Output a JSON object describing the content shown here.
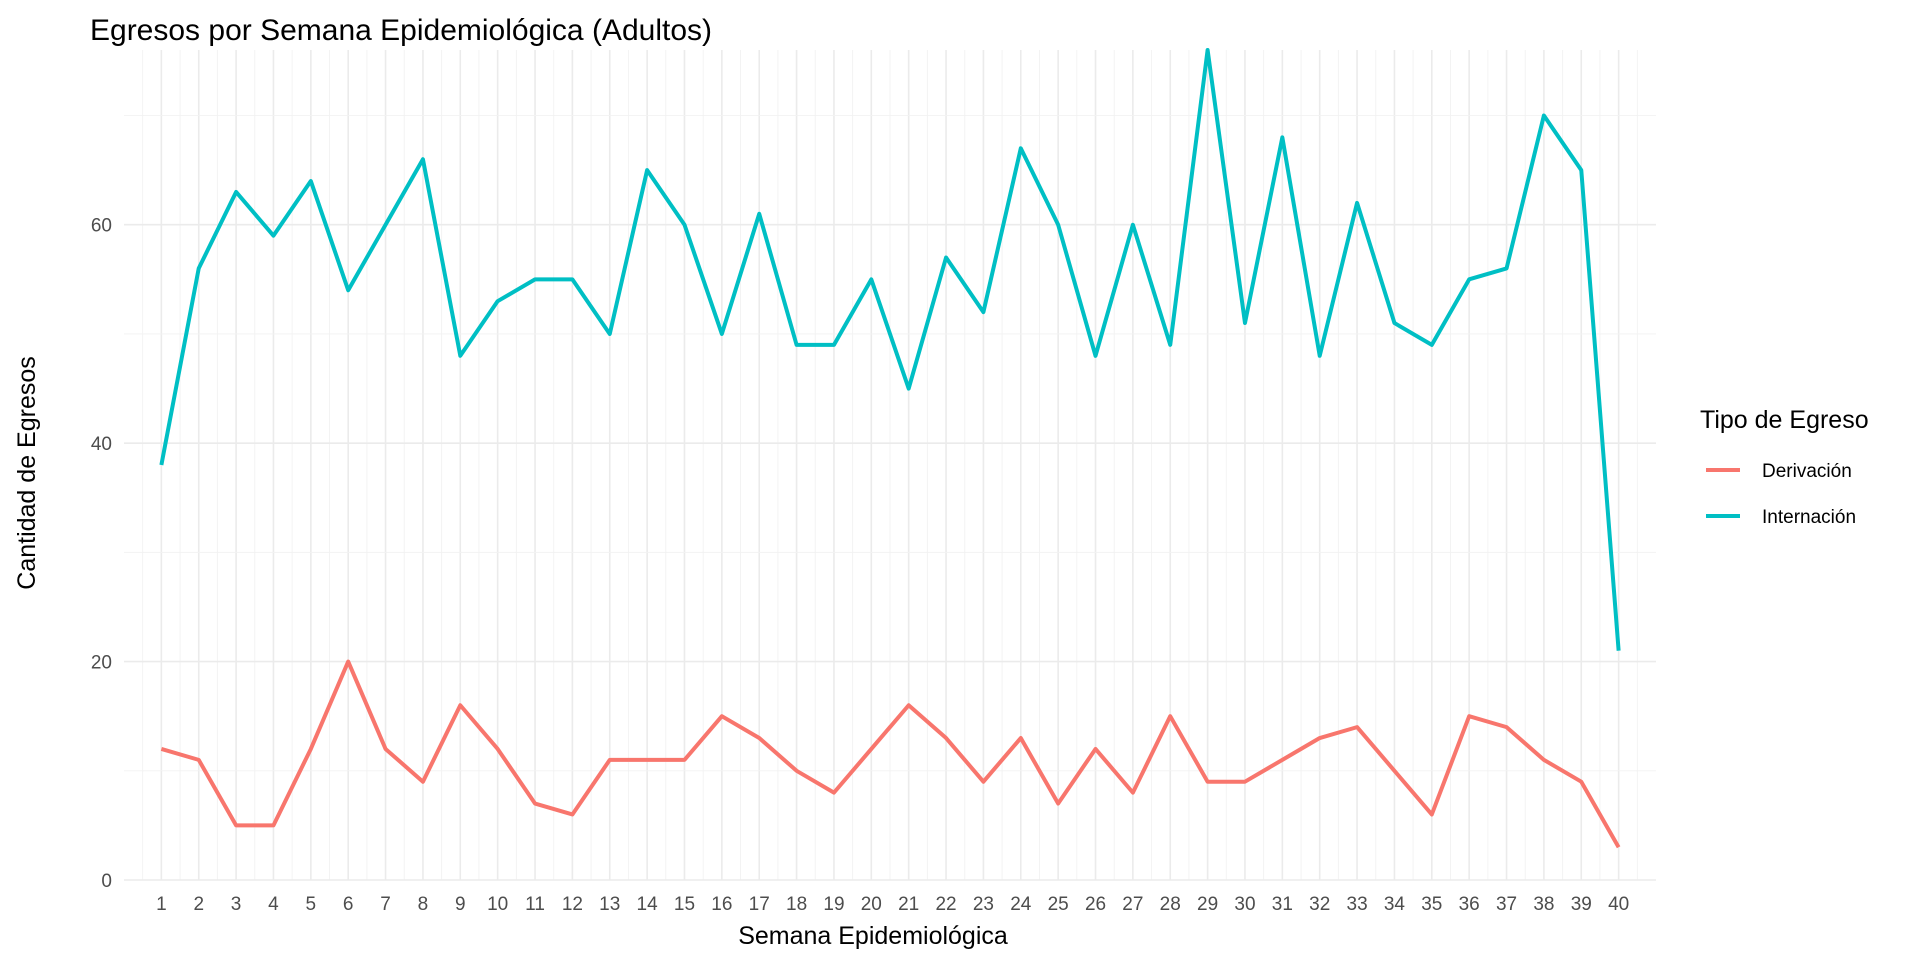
{
  "chart_data": {
    "type": "line",
    "title": "Egresos por Semana Epidemiológica (Adultos)",
    "xlabel": "Semana Epidemiológica",
    "ylabel": "Cantidad de Egresos",
    "x": [
      1,
      2,
      3,
      4,
      5,
      6,
      7,
      8,
      9,
      10,
      11,
      12,
      13,
      14,
      15,
      16,
      17,
      18,
      19,
      20,
      21,
      22,
      23,
      24,
      25,
      26,
      27,
      28,
      29,
      30,
      31,
      32,
      33,
      34,
      35,
      36,
      37,
      38,
      39,
      40
    ],
    "xlim": [
      0.0,
      41.0
    ],
    "ylim": [
      0,
      76
    ],
    "yticks": [
      0,
      20,
      40,
      60
    ],
    "grid": true,
    "legend": {
      "title": "Tipo de Egreso",
      "position": "right"
    },
    "series": [
      {
        "name": "Derivación",
        "color": "#F8766D",
        "values": [
          12,
          11,
          5,
          5,
          12,
          20,
          12,
          9,
          16,
          12,
          7,
          6,
          11,
          11,
          11,
          15,
          13,
          10,
          8,
          12,
          16,
          13,
          9,
          13,
          7,
          12,
          8,
          15,
          9,
          9,
          11,
          13,
          14,
          10,
          6,
          15,
          14,
          11,
          9,
          3
        ]
      },
      {
        "name": "Internación",
        "color": "#00BFC4",
        "values": [
          38,
          56,
          63,
          59,
          64,
          54,
          60,
          66,
          48,
          53,
          55,
          55,
          50,
          65,
          60,
          50,
          61,
          49,
          49,
          55,
          45,
          57,
          52,
          67,
          60,
          48,
          60,
          49,
          76,
          51,
          68,
          48,
          62,
          51,
          49,
          55,
          56,
          70,
          65,
          21
        ]
      }
    ]
  }
}
